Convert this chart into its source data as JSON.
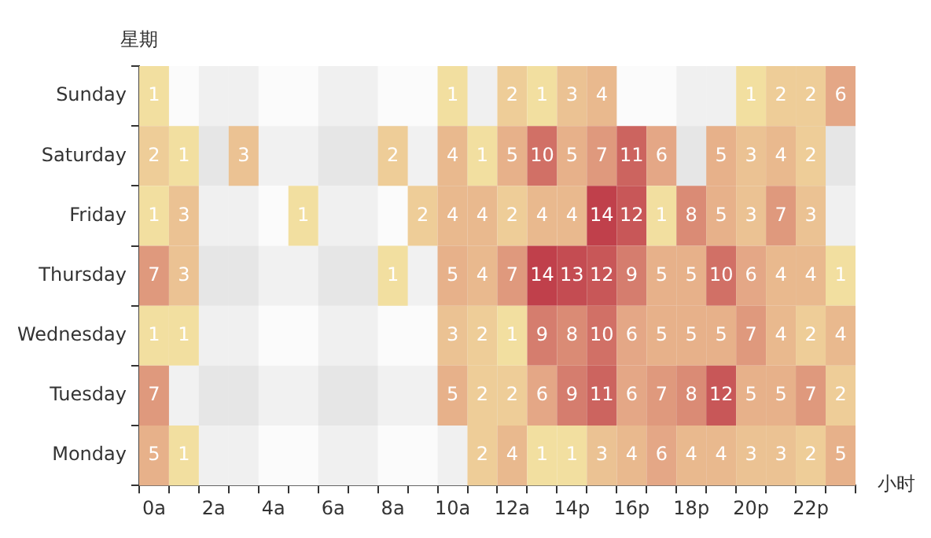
{
  "chart_data": {
    "type": "heatmap",
    "xlabel": "小时",
    "ylabel": "星期",
    "data_labels": true,
    "categories": [
      "0a",
      null,
      "2a",
      null,
      "4a",
      null,
      "6a",
      null,
      "8a",
      null,
      "10a",
      null,
      "12a",
      null,
      "14p",
      null,
      "16p",
      null,
      "18p",
      null,
      "20p",
      null,
      "22p",
      null
    ],
    "y_categories": [
      "Sunday",
      "Saturday",
      "Friday",
      "Thursday",
      "Wednesday",
      "Tuesday",
      "Monday"
    ],
    "cells": [
      [
        1,
        null,
        null,
        null,
        null,
        null,
        null,
        null,
        null,
        null,
        1,
        null,
        2,
        1,
        3,
        4,
        null,
        null,
        null,
        null,
        1,
        2,
        2,
        6
      ],
      [
        2,
        1,
        null,
        3,
        null,
        null,
        null,
        null,
        2,
        null,
        4,
        1,
        5,
        10,
        5,
        7,
        11,
        6,
        null,
        5,
        3,
        4,
        2,
        null
      ],
      [
        1,
        3,
        null,
        null,
        null,
        1,
        null,
        null,
        null,
        2,
        4,
        4,
        2,
        4,
        4,
        14,
        12,
        1,
        8,
        5,
        3,
        7,
        3,
        null
      ],
      [
        7,
        3,
        null,
        null,
        null,
        null,
        null,
        null,
        1,
        null,
        5,
        4,
        7,
        14,
        13,
        12,
        9,
        5,
        5,
        10,
        6,
        4,
        4,
        1
      ],
      [
        1,
        1,
        null,
        null,
        null,
        null,
        null,
        null,
        null,
        null,
        3,
        2,
        1,
        9,
        8,
        10,
        6,
        5,
        5,
        5,
        7,
        4,
        2,
        4
      ],
      [
        7,
        null,
        null,
        null,
        null,
        null,
        null,
        null,
        null,
        null,
        5,
        2,
        2,
        6,
        9,
        11,
        6,
        7,
        8,
        12,
        5,
        5,
        7,
        2
      ],
      [
        5,
        1,
        null,
        null,
        null,
        null,
        null,
        null,
        null,
        null,
        null,
        2,
        4,
        1,
        1,
        3,
        4,
        6,
        4,
        4,
        3,
        3,
        2,
        5
      ]
    ]
  }
}
